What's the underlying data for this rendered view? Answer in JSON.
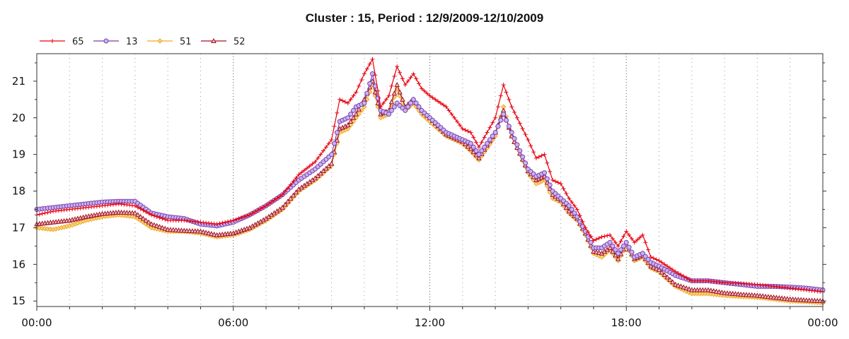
{
  "chart_data": {
    "type": "line",
    "title": "Cluster : 15, Period : 12/9/2009-12/10/2009",
    "xlabel": "",
    "ylabel": "",
    "x_ticks": [
      "00:00",
      "06:00",
      "12:00",
      "18:00",
      "00:00"
    ],
    "y_ticks": [
      15,
      16,
      17,
      18,
      19,
      20,
      21
    ],
    "ylim": [
      14.85,
      21.75
    ],
    "xlim_hours": [
      0,
      24
    ],
    "grid": "vertical dotted, hourly",
    "legend_position": "top-left",
    "x_hours": [
      0,
      0.5,
      1,
      1.5,
      2,
      2.5,
      3,
      3.5,
      4,
      4.5,
      5,
      5.5,
      6,
      6.5,
      7,
      7.5,
      8,
      8.5,
      9,
      9.25,
      9.5,
      9.75,
      10,
      10.25,
      10.5,
      10.75,
      11,
      11.25,
      11.5,
      11.75,
      12,
      12.5,
      13,
      13.25,
      13.5,
      14,
      14.25,
      14.5,
      15,
      15.25,
      15.5,
      15.75,
      16,
      16.25,
      16.5,
      16.75,
      17,
      17.25,
      17.5,
      17.75,
      18,
      18.25,
      18.5,
      18.75,
      19,
      19.5,
      20,
      20.5,
      21,
      21.5,
      22,
      22.5,
      23,
      23.5,
      24
    ],
    "series": [
      {
        "name": "65",
        "color": "#e8000e",
        "marker": "plus",
        "values": [
          17.35,
          17.45,
          17.5,
          17.55,
          17.6,
          17.65,
          17.6,
          17.35,
          17.2,
          17.2,
          17.15,
          17.1,
          17.2,
          17.35,
          17.6,
          17.9,
          18.45,
          18.8,
          19.4,
          20.5,
          20.4,
          20.7,
          21.2,
          21.6,
          20.3,
          20.6,
          21.4,
          20.9,
          21.2,
          20.8,
          20.6,
          20.3,
          19.7,
          19.6,
          19.2,
          20.0,
          20.9,
          20.3,
          19.4,
          18.9,
          19.0,
          18.3,
          18.2,
          17.8,
          17.5,
          17.0,
          16.65,
          16.75,
          16.8,
          16.5,
          16.9,
          16.6,
          16.8,
          16.2,
          16.1,
          15.8,
          15.55,
          15.55,
          15.5,
          15.48,
          15.45,
          15.4,
          15.35,
          15.3,
          15.25
        ]
      },
      {
        "name": "13",
        "color": "#7b3fb0",
        "marker": "circle",
        "values": [
          17.5,
          17.55,
          17.6,
          17.65,
          17.7,
          17.72,
          17.72,
          17.4,
          17.3,
          17.25,
          17.1,
          17.05,
          17.15,
          17.35,
          17.6,
          17.9,
          18.3,
          18.6,
          19.0,
          19.9,
          20.0,
          20.3,
          20.4,
          21.2,
          20.2,
          20.1,
          20.4,
          20.2,
          20.5,
          20.2,
          20.0,
          19.6,
          19.4,
          19.3,
          19.0,
          19.6,
          20.1,
          19.6,
          18.6,
          18.4,
          18.5,
          18.0,
          17.8,
          17.6,
          17.3,
          16.9,
          16.45,
          16.45,
          16.6,
          16.3,
          16.6,
          16.2,
          16.3,
          16.05,
          15.95,
          15.7,
          15.55,
          15.55,
          15.5,
          15.45,
          15.4,
          15.4,
          15.38,
          15.35,
          15.3
        ]
      },
      {
        "name": "51",
        "color": "#f0a623",
        "marker": "diamond",
        "values": [
          17.0,
          16.95,
          17.05,
          17.2,
          17.3,
          17.35,
          17.3,
          17.0,
          16.9,
          16.9,
          16.85,
          16.75,
          16.8,
          16.95,
          17.2,
          17.5,
          18.0,
          18.3,
          18.7,
          19.6,
          19.7,
          20.0,
          20.3,
          20.9,
          20.0,
          20.1,
          20.8,
          20.2,
          20.4,
          20.1,
          19.9,
          19.5,
          19.3,
          19.1,
          18.85,
          19.5,
          20.3,
          19.5,
          18.5,
          18.2,
          18.3,
          17.8,
          17.7,
          17.4,
          17.2,
          16.8,
          16.3,
          16.2,
          16.4,
          16.1,
          16.5,
          16.1,
          16.2,
          15.9,
          15.8,
          15.4,
          15.2,
          15.2,
          15.15,
          15.12,
          15.1,
          15.05,
          15.0,
          14.98,
          14.95
        ]
      },
      {
        "name": "52",
        "color": "#a01020",
        "marker": "triangle",
        "values": [
          17.1,
          17.15,
          17.2,
          17.3,
          17.38,
          17.42,
          17.4,
          17.1,
          16.95,
          16.92,
          16.9,
          16.8,
          16.85,
          17.0,
          17.25,
          17.55,
          18.05,
          18.35,
          18.75,
          19.7,
          19.8,
          20.1,
          20.5,
          21.0,
          20.1,
          20.2,
          20.9,
          20.3,
          20.5,
          20.2,
          20.0,
          19.55,
          19.35,
          19.15,
          18.9,
          19.6,
          20.2,
          19.5,
          18.55,
          18.3,
          18.4,
          17.9,
          17.75,
          17.45,
          17.25,
          16.85,
          16.35,
          16.3,
          16.45,
          16.15,
          16.55,
          16.15,
          16.25,
          15.95,
          15.85,
          15.45,
          15.3,
          15.3,
          15.22,
          15.18,
          15.15,
          15.1,
          15.05,
          15.02,
          15.0
        ]
      }
    ]
  }
}
